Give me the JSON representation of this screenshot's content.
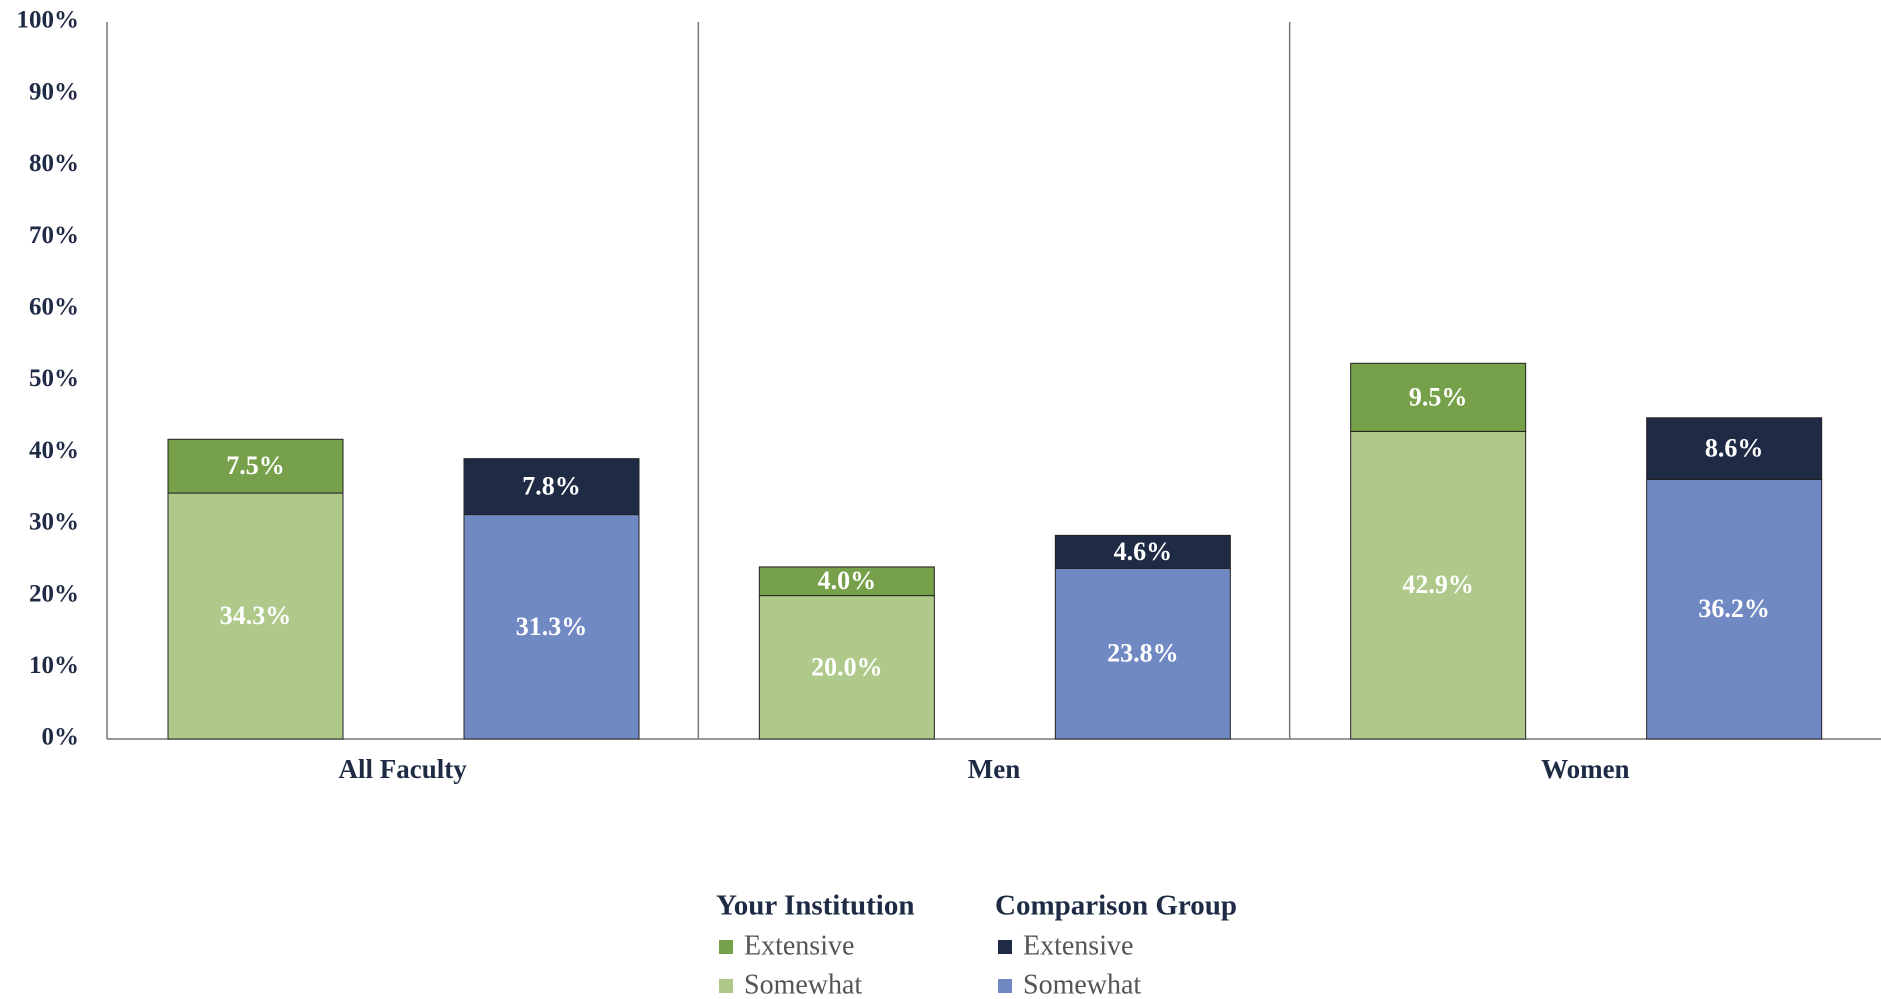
{
  "chart_data": {
    "type": "grouped-stacked-bar",
    "categories": [
      "All Faculty",
      "Men",
      "Women"
    ],
    "ylim": [
      0,
      100
    ],
    "yticks": [
      {
        "value": 0,
        "label": "0%"
      },
      {
        "value": 10,
        "label": "10%"
      },
      {
        "value": 20,
        "label": "20%"
      },
      {
        "value": 30,
        "label": "30%"
      },
      {
        "value": 40,
        "label": "40%"
      },
      {
        "value": 50,
        "label": "50%"
      },
      {
        "value": 60,
        "label": "60%"
      },
      {
        "value": 70,
        "label": "70%"
      },
      {
        "value": 80,
        "label": "80%"
      },
      {
        "value": 90,
        "label": "90%"
      },
      {
        "value": 100,
        "label": "100%"
      }
    ],
    "groups": [
      {
        "name": "Your Institution",
        "series": [
          {
            "name": "Somewhat",
            "color": "#afc98b",
            "values": [
              34.3,
              20.0,
              42.9
            ],
            "value_labels": [
              "34.3%",
              "20.0%",
              "42.9%"
            ]
          },
          {
            "name": "Extensive",
            "color": "#77a04a",
            "values": [
              7.5,
              4.0,
              9.5
            ],
            "value_labels": [
              "7.5%",
              "4.0%",
              "9.5%"
            ]
          }
        ]
      },
      {
        "name": "Comparison Group",
        "series": [
          {
            "name": "Somewhat",
            "color": "#7189c2",
            "values": [
              31.3,
              23.8,
              36.2
            ],
            "value_labels": [
              "31.3%",
              "23.8%",
              "36.2%"
            ]
          },
          {
            "name": "Extensive",
            "color": "#1f2b45",
            "values": [
              7.8,
              4.6,
              8.6
            ],
            "value_labels": [
              "7.8%",
              "4.6%",
              "8.6%"
            ]
          }
        ]
      }
    ]
  }
}
